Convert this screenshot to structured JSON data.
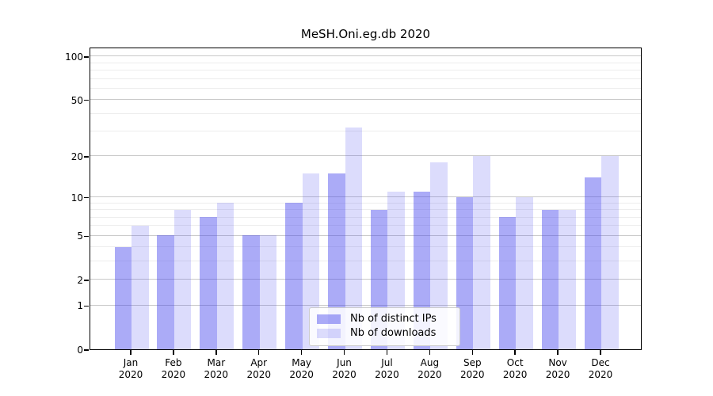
{
  "chart_data": {
    "type": "bar",
    "title": "MeSH.Oni.eg.db 2020",
    "year_label": "2020",
    "categories": [
      "Jan",
      "Feb",
      "Mar",
      "Apr",
      "May",
      "Jun",
      "Jul",
      "Aug",
      "Sep",
      "Oct",
      "Nov",
      "Dec"
    ],
    "series": [
      {
        "name": "Nb of distinct IPs",
        "color": "rgba(68,68,238,0.45)",
        "values": [
          4,
          5,
          7,
          5,
          9,
          15,
          8,
          11,
          10,
          7,
          8,
          14
        ]
      },
      {
        "name": "Nb of downloads",
        "color": "rgba(68,68,238,0.19)",
        "values": [
          6,
          8,
          9,
          5,
          15,
          32,
          11,
          18,
          20,
          10,
          8,
          20
        ]
      }
    ],
    "yscale": "log1p",
    "ylim": [
      0,
      116
    ],
    "yticks_major": [
      100,
      50,
      20,
      10,
      5,
      2,
      1,
      0
    ],
    "yticks_minor": [
      90,
      80,
      70,
      60,
      40,
      30,
      9,
      8,
      7,
      6,
      4,
      3
    ],
    "grid": true,
    "legend_position": "lower center",
    "colors": {
      "grid_major": "#c9c9c9",
      "grid_minor": "#ededed",
      "axis": "#000000",
      "background": "#ffffff"
    }
  }
}
